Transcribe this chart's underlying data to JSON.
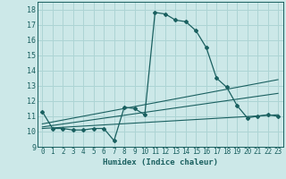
{
  "xlabel": "Humidex (Indice chaleur)",
  "xlim": [
    -0.5,
    23.5
  ],
  "ylim": [
    9,
    18.5
  ],
  "yticks": [
    9,
    10,
    11,
    12,
    13,
    14,
    15,
    16,
    17,
    18
  ],
  "xticks": [
    0,
    1,
    2,
    3,
    4,
    5,
    6,
    7,
    8,
    9,
    10,
    11,
    12,
    13,
    14,
    15,
    16,
    17,
    18,
    19,
    20,
    21,
    22,
    23
  ],
  "bg_color": "#cce8e8",
  "line_color": "#1a6060",
  "grid_color": "#add4d4",
  "line0_x": [
    0,
    1,
    2,
    3,
    4,
    5,
    6,
    7,
    8,
    9,
    10,
    11,
    12,
    13,
    14,
    15,
    16,
    17,
    18,
    19,
    20,
    21,
    22,
    23
  ],
  "line0_y": [
    11.3,
    10.2,
    10.2,
    10.1,
    10.1,
    10.2,
    10.2,
    9.4,
    11.6,
    11.5,
    11.1,
    17.8,
    17.7,
    17.3,
    17.2,
    16.6,
    15.5,
    13.5,
    12.9,
    11.7,
    10.9,
    11.0,
    11.1,
    11.0
  ],
  "line1_x": [
    0,
    23
  ],
  "line1_y": [
    10.5,
    13.4
  ],
  "line2_x": [
    0,
    23
  ],
  "line2_y": [
    10.3,
    12.5
  ],
  "line3_x": [
    0,
    23
  ],
  "line3_y": [
    10.2,
    11.1
  ]
}
